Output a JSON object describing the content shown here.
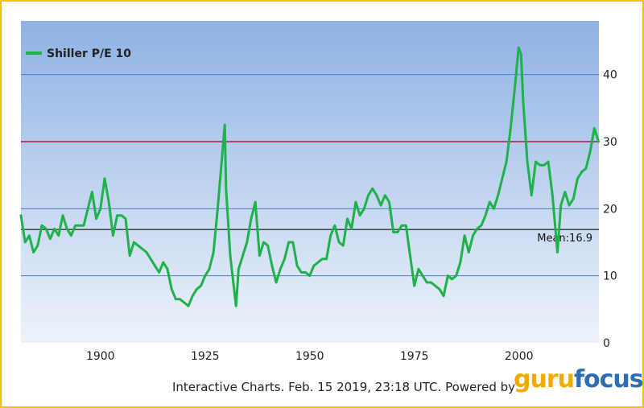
{
  "chart_data": {
    "type": "line",
    "title": "",
    "xlabel": "",
    "ylabel": "",
    "xlim": [
      1881,
      2019.1
    ],
    "ylim": [
      0,
      48
    ],
    "x_ticks": [
      1900,
      1925,
      1950,
      1975,
      2000
    ],
    "y_ticks": [
      0,
      10,
      20,
      30,
      40
    ],
    "y_axis_side": "right",
    "grid": "horizontal",
    "legend_position": "top-left",
    "colors": {
      "plot_top": "#8eb2e3",
      "plot_bottom": "#eef3fb",
      "grid": "#4a7fd0",
      "line": "#1fb14a",
      "mean_line": "#111111",
      "reference_line": "#b0446a",
      "frame_border": "#f2c400"
    },
    "series": [
      {
        "name": "Shiller P/E 10",
        "x": [
          1881,
          1882,
          1883,
          1884,
          1885,
          1886,
          1887,
          1888,
          1889,
          1890,
          1891,
          1892,
          1893,
          1894,
          1895,
          1896,
          1897,
          1898,
          1899,
          1900,
          1901,
          1902,
          1903,
          1904,
          1905,
          1906,
          1907,
          1908,
          1909,
          1910,
          1911,
          1912,
          1913,
          1914,
          1915,
          1916,
          1917,
          1918,
          1919,
          1920,
          1921,
          1922,
          1923,
          1924,
          1925,
          1926,
          1927,
          1928,
          1929.7,
          1930,
          1931,
          1932.4,
          1933,
          1934,
          1935,
          1936,
          1937,
          1938,
          1939,
          1940,
          1941,
          1942,
          1943,
          1944,
          1945,
          1946,
          1947,
          1948,
          1949,
          1950,
          1951,
          1952,
          1953,
          1954,
          1955,
          1956,
          1957,
          1958,
          1959,
          1960,
          1961,
          1962,
          1963,
          1964,
          1965,
          1966,
          1967,
          1968,
          1969,
          1970,
          1971,
          1972,
          1973,
          1974,
          1975,
          1976,
          1977,
          1978,
          1979,
          1980,
          1981,
          1982,
          1983,
          1984,
          1985,
          1986,
          1987,
          1988,
          1989,
          1990,
          1991,
          1992,
          1993,
          1994,
          1995,
          1996,
          1997,
          1998,
          1999,
          1999.9,
          2000.5,
          2001,
          2002,
          2003,
          2004,
          2005,
          2006,
          2007,
          2008,
          2009.2,
          2010,
          2011,
          2012,
          2013,
          2014,
          2015,
          2016,
          2017,
          2018,
          2018.5,
          2019
        ],
        "values": [
          19.0,
          15.0,
          16.0,
          13.5,
          14.5,
          17.5,
          17.0,
          15.5,
          17.0,
          16.0,
          19.0,
          17.0,
          16.0,
          17.5,
          17.5,
          17.5,
          20.0,
          22.5,
          18.5,
          20.0,
          24.5,
          21.0,
          16.0,
          19.0,
          19.0,
          18.5,
          13.0,
          15.0,
          14.5,
          14.0,
          13.5,
          12.5,
          11.5,
          10.5,
          12.0,
          11.0,
          8.0,
          6.5,
          6.5,
          6.0,
          5.5,
          7.0,
          8.0,
          8.5,
          10.0,
          11.0,
          13.5,
          20.0,
          32.5,
          23.0,
          13.0,
          5.5,
          11.0,
          13.0,
          15.0,
          18.5,
          21.0,
          13.0,
          15.0,
          14.5,
          11.5,
          9.0,
          11.0,
          12.5,
          15.0,
          15.0,
          11.5,
          10.5,
          10.5,
          10.0,
          11.5,
          12.0,
          12.5,
          12.5,
          16.0,
          17.5,
          15.0,
          14.5,
          18.5,
          17.0,
          21.0,
          19.0,
          20.0,
          22.0,
          23.0,
          22.0,
          20.5,
          22.0,
          21.0,
          16.5,
          16.5,
          17.5,
          17.5,
          13.0,
          8.5,
          11.0,
          10.0,
          9.0,
          9.0,
          8.5,
          8.0,
          7.0,
          10.0,
          9.5,
          10.0,
          12.0,
          16.0,
          13.5,
          16.0,
          17.0,
          17.5,
          19.0,
          21.0,
          20.0,
          22.0,
          24.5,
          27.0,
          32.0,
          38.0,
          44.0,
          43.0,
          36.0,
          27.0,
          22.0,
          27.0,
          26.5,
          26.5,
          27.0,
          22.0,
          13.5,
          20.5,
          22.5,
          20.5,
          21.5,
          24.5,
          25.5,
          26.0,
          28.5,
          32.0,
          31.0,
          30.0
        ]
      }
    ],
    "reference_line": {
      "value": 30
    },
    "mean": {
      "value": 16.9,
      "label": "Mean:16.9"
    }
  },
  "footer": {
    "text": "Interactive Charts. Feb. 15 2019, 23:18 UTC. Powered by",
    "logo_part1": "guru",
    "logo_part2": "focus"
  }
}
